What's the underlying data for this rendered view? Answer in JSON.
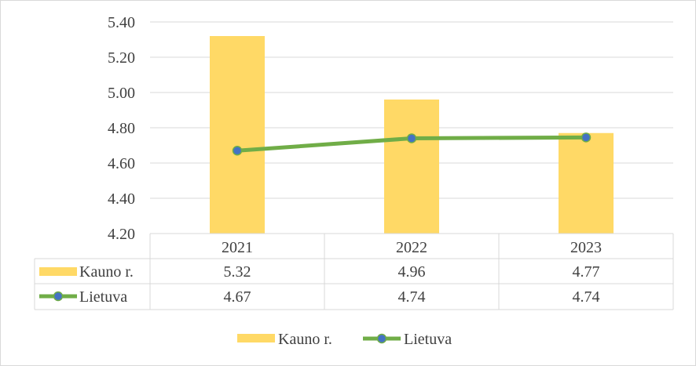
{
  "chart_data": {
    "type": "bar",
    "categories": [
      "2021",
      "2022",
      "2023"
    ],
    "ylim": [
      4.2,
      5.4
    ],
    "yticks": [
      "4.20",
      "4.40",
      "4.60",
      "4.80",
      "5.00",
      "5.20",
      "5.40"
    ],
    "series": [
      {
        "name": "Kauno r.",
        "kind": "bar",
        "color": "#FFD966",
        "values": [
          5.32,
          4.96,
          4.77
        ],
        "labels": [
          "5.32",
          "4.96",
          "4.77"
        ]
      },
      {
        "name": "Lietuva",
        "kind": "line",
        "color": "#70AD47",
        "marker_color": "#4472C4",
        "values": [
          4.67,
          4.74,
          4.745
        ],
        "labels": [
          "4.67",
          "4.74",
          "4.74"
        ]
      }
    ],
    "data_table": true,
    "legend_position": "bottom",
    "grid": true
  }
}
